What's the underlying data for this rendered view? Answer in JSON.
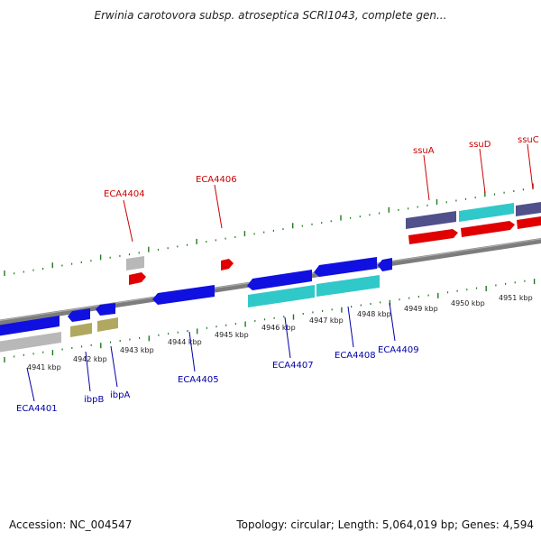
{
  "title": "Erwinia carotovora subsp. atroseptica SCRI1043, complete gen...",
  "footer": {
    "accession": "Accession: NC_004547",
    "stats": "Topology: circular; Length: 5,064,019 bp; Genes: 4,594"
  },
  "ruler_labels": [
    "4941 kbp",
    "4942 kbp",
    "4943 kbp",
    "4944 kbp",
    "4945 kbp",
    "4946 kbp",
    "4947 kbp",
    "4948 kbp",
    "4949 kbp",
    "4950 kbp",
    "4951 kbp"
  ],
  "top_labels": [
    "ECA4404",
    "ECA4406",
    "ssuA",
    "ssuD",
    "ssuC"
  ],
  "bottom_labels": [
    "ECA4401",
    "ibpB",
    "ibpA",
    "ECA4405",
    "ECA4407",
    "ECA4408",
    "ECA4409"
  ],
  "colors": {
    "backbone": "#888888",
    "tick": "#1f7a1f",
    "gene_blue": "#1010e0",
    "gene_cyan": "#30c8c8",
    "gene_red": "#e00000",
    "gene_gray": "#b8b8b8",
    "gene_olive": "#b0a860",
    "gene_slate": "#50508a",
    "label_top": "#cc0000",
    "label_bottom": "#0000aa"
  }
}
